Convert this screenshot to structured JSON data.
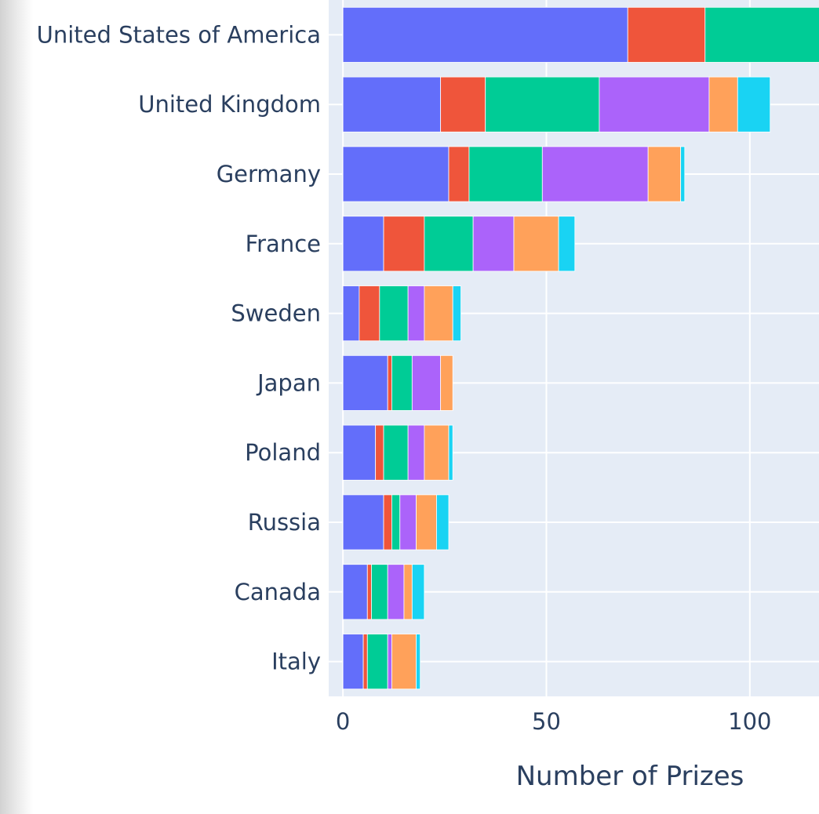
{
  "chart_data": {
    "type": "bar",
    "orientation": "horizontal",
    "barmode": "stack",
    "categories": [
      "United States of America",
      "United Kingdom",
      "Germany",
      "France",
      "Sweden",
      "Japan",
      "Poland",
      "Russia",
      "Canada",
      "Italy"
    ],
    "series": [
      {
        "color": "#636efa",
        "values": [
          70,
          24,
          26,
          10,
          4,
          11,
          8,
          10,
          6,
          5
        ]
      },
      {
        "color": "#ef553b",
        "values": [
          19,
          11,
          5,
          10,
          5,
          1,
          2,
          2,
          1,
          1
        ]
      },
      {
        "color": "#00cc96",
        "values": [
          30,
          28,
          18,
          12,
          7,
          5,
          6,
          2,
          4,
          5
        ]
      },
      {
        "color": "#ab63fa",
        "values": [
          null,
          27,
          26,
          10,
          4,
          7,
          4,
          4,
          4,
          1
        ]
      },
      {
        "color": "#ffa15a",
        "values": [
          null,
          7,
          8,
          11,
          7,
          3,
          6,
          5,
          2,
          6
        ]
      },
      {
        "color": "#19d3f3",
        "values": [
          null,
          8,
          1,
          4,
          2,
          0,
          1,
          3,
          3,
          1
        ]
      }
    ],
    "x_ticks": [
      "0",
      "50",
      "100"
    ],
    "x_tick_values": [
      0,
      50,
      100
    ],
    "xlabel": "Number of Prizes",
    "ylabel": "",
    "xlim": [
      -3.5,
      117
    ],
    "grid": true,
    "plot_bgcolor": "#e5ecf6",
    "grid_color": "#ffffff",
    "text_color": "#2a3f5f"
  }
}
